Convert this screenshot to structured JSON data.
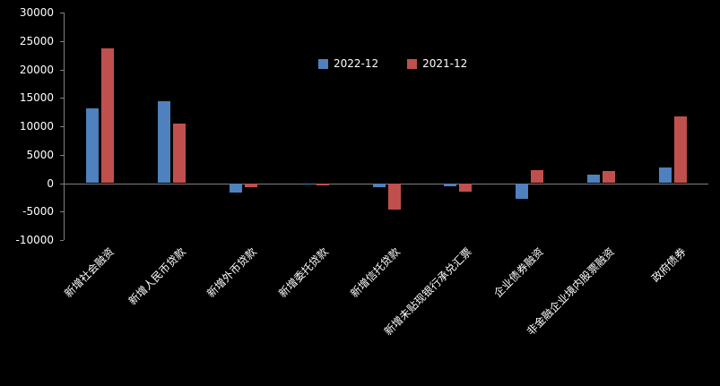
{
  "chart": {
    "background": "#000000",
    "text_color": "#ffffff",
    "axis_color": "#7f7f7f"
  },
  "legend": {
    "items": [
      {
        "label": "2022-12",
        "color": "#4e81bd"
      },
      {
        "label": "2021-12",
        "color": "#c0504d"
      }
    ]
  },
  "chart_data": {
    "type": "bar",
    "title": "",
    "xlabel": "",
    "ylabel": "",
    "categories": [
      "新增社会融资",
      "新增人民币贷款",
      "新增外币贷款",
      "新增委托贷款",
      "新增信托贷款",
      "新增未贴现银行承兑汇票",
      "企业债券融资",
      "非金融企业境内股票融资",
      "政府债券"
    ],
    "series": [
      {
        "name": "2022-12",
        "color": "#4e81bd",
        "values": [
          13100,
          14400,
          -1700,
          -100,
          -760,
          -550,
          -2700,
          1480,
          2800
        ]
      },
      {
        "name": "2021-12",
        "color": "#c0504d",
        "values": [
          23700,
          10400,
          -650,
          -420,
          -4580,
          -1420,
          2230,
          2120,
          11700
        ]
      }
    ],
    "ylim": [
      -10000,
      30000
    ],
    "ytick_step": 5000,
    "yticks": [
      30000,
      25000,
      20000,
      15000,
      10000,
      5000,
      0,
      -5000,
      -10000
    ],
    "legend_position": "top-center",
    "grid": false
  }
}
